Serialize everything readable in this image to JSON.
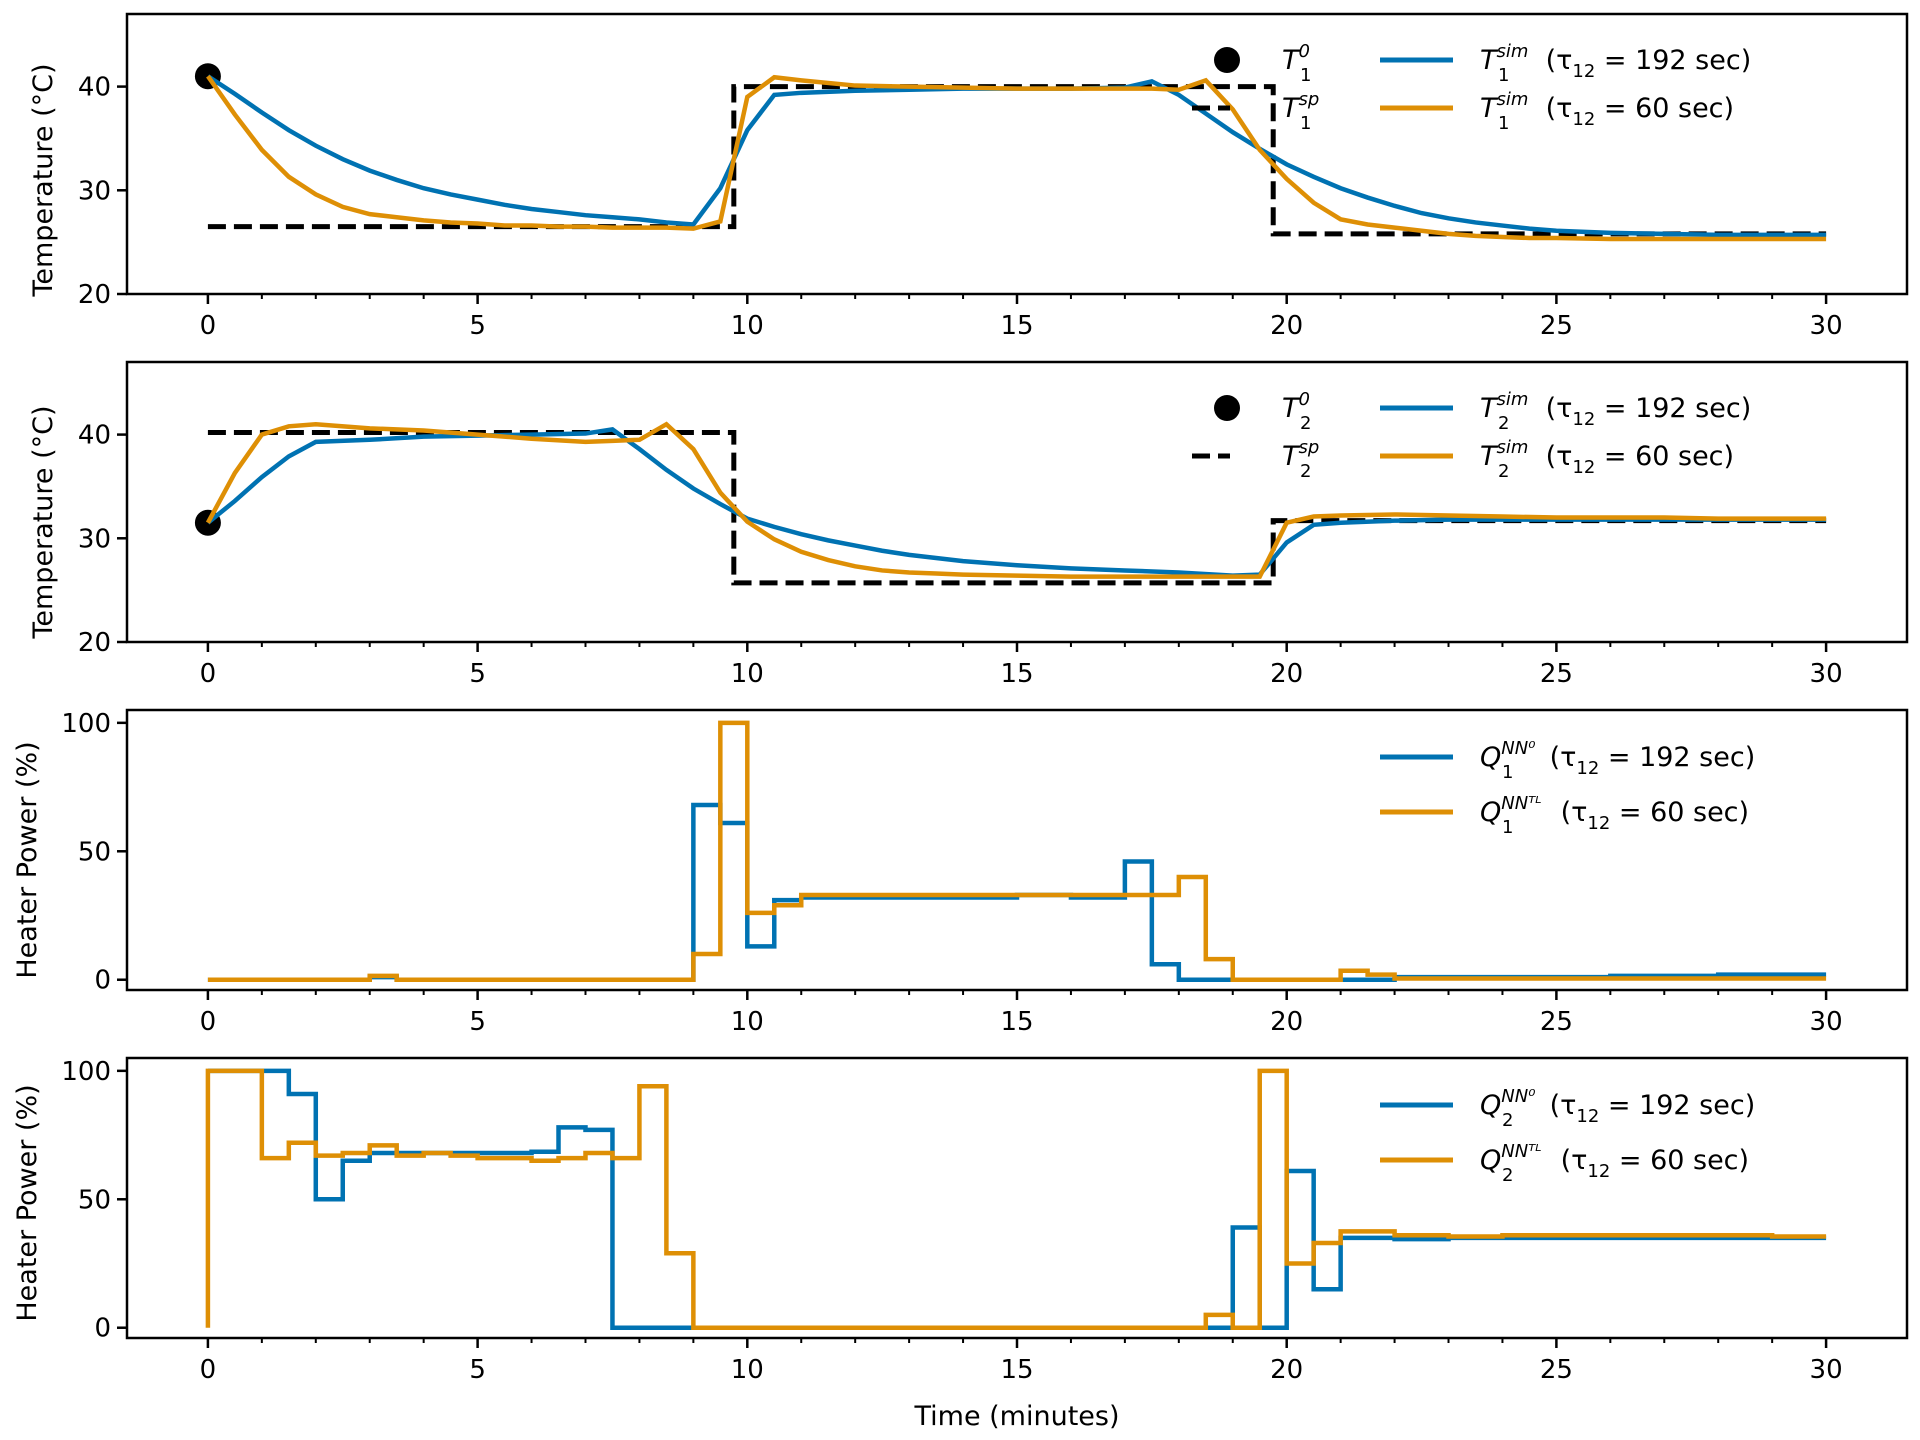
{
  "figure": {
    "xlabel": "Time (minutes)"
  },
  "chart_data": [
    {
      "type": "line",
      "ylabel": "Temperature (°C)",
      "xlim": [
        -1.5,
        31.5
      ],
      "ylim": [
        20,
        47
      ],
      "xticks": [
        0,
        5,
        10,
        15,
        20,
        25,
        30
      ],
      "yticks": [
        20,
        30,
        40
      ],
      "grid": false,
      "legend_placement": "top-right",
      "series": [
        {
          "name": "T₁⁰",
          "kind": "point",
          "color": "#000000",
          "x": [
            0
          ],
          "y": [
            41
          ]
        },
        {
          "name": "T₁ˢᵖ",
          "kind": "dashed",
          "color": "#000000",
          "x": [
            0,
            9.75,
            9.75,
            19.75,
            19.75,
            30
          ],
          "y": [
            26.5,
            26.5,
            40,
            40,
            25.8,
            25.8
          ]
        },
        {
          "name": "T₁ˢⁱᵐ (τ₁₂ = 192 sec)",
          "kind": "line",
          "color": "#0072b2",
          "x": [
            0,
            0.5,
            1,
            1.5,
            2,
            2.5,
            3,
            3.5,
            4,
            4.5,
            5,
            5.5,
            6,
            6.5,
            7,
            7.5,
            8,
            8.5,
            9,
            9.5,
            10,
            10.5,
            11,
            12,
            13,
            14,
            15,
            16,
            17,
            17.5,
            18,
            18.5,
            19,
            19.5,
            20,
            20.5,
            21,
            21.5,
            22,
            22.5,
            23,
            23.5,
            24,
            24.5,
            25,
            26,
            27,
            28,
            29,
            30
          ],
          "y": [
            41,
            39.3,
            37.5,
            35.8,
            34.3,
            33,
            31.9,
            31,
            30.2,
            29.6,
            29.1,
            28.6,
            28.2,
            27.9,
            27.6,
            27.4,
            27.2,
            26.9,
            26.7,
            30.2,
            35.8,
            39.2,
            39.4,
            39.6,
            39.7,
            39.8,
            39.8,
            39.8,
            39.9,
            40.5,
            39.2,
            37.4,
            35.6,
            34,
            32.5,
            31.3,
            30.2,
            29.3,
            28.5,
            27.8,
            27.3,
            26.9,
            26.6,
            26.3,
            26.1,
            25.9,
            25.8,
            25.7,
            25.7,
            25.7
          ]
        },
        {
          "name": "T₁ˢⁱᵐ (τ₁₂ = 60 sec)",
          "kind": "line",
          "color": "#de8f05",
          "x": [
            0,
            0.5,
            1,
            1.5,
            2,
            2.5,
            3,
            3.5,
            4,
            4.5,
            5,
            5.5,
            6,
            6.5,
            7,
            7.5,
            8,
            8.5,
            9,
            9.5,
            10,
            10.5,
            11,
            12,
            13,
            14,
            15,
            16,
            17,
            17.5,
            18,
            18.5,
            19,
            19.5,
            20,
            20.5,
            21,
            21.5,
            22,
            22.5,
            23,
            23.5,
            24,
            24.5,
            25,
            26,
            27,
            28,
            29,
            30
          ],
          "y": [
            41,
            37.3,
            33.9,
            31.3,
            29.6,
            28.4,
            27.7,
            27.4,
            27.1,
            26.9,
            26.8,
            26.6,
            26.6,
            26.5,
            26.5,
            26.4,
            26.4,
            26.4,
            26.3,
            27,
            39,
            40.9,
            40.6,
            40.1,
            40,
            39.9,
            39.8,
            39.8,
            39.8,
            39.8,
            39.7,
            40.6,
            37.8,
            33.9,
            31.1,
            28.8,
            27.2,
            26.7,
            26.4,
            26.1,
            25.8,
            25.6,
            25.5,
            25.4,
            25.4,
            25.3,
            25.3,
            25.3,
            25.3,
            25.3
          ]
        }
      ]
    },
    {
      "type": "line",
      "ylabel": "Temperature (°C)",
      "xlim": [
        -1.5,
        31.5
      ],
      "ylim": [
        20,
        47
      ],
      "xticks": [
        0,
        5,
        10,
        15,
        20,
        25,
        30
      ],
      "yticks": [
        20,
        30,
        40
      ],
      "grid": false,
      "legend_placement": "top-right",
      "series": [
        {
          "name": "T₂⁰",
          "kind": "point",
          "color": "#000000",
          "x": [
            0
          ],
          "y": [
            31.5
          ]
        },
        {
          "name": "T₂ˢᵖ",
          "kind": "dashed",
          "color": "#000000",
          "x": [
            0,
            9.75,
            9.75,
            19.75,
            19.75,
            30
          ],
          "y": [
            40.2,
            40.2,
            25.7,
            25.7,
            31.7,
            31.7
          ]
        },
        {
          "name": "T₂ˢⁱᵐ (τ₁₂ = 192 sec)",
          "kind": "line",
          "color": "#0072b2",
          "x": [
            0,
            0.5,
            1,
            1.5,
            2,
            3,
            4,
            5,
            6,
            7,
            7.5,
            8,
            8.5,
            9,
            9.5,
            10,
            10.5,
            11,
            11.5,
            12,
            12.5,
            13,
            13.5,
            14,
            15,
            16,
            17,
            18,
            19,
            19.5,
            20,
            20.5,
            21,
            22,
            23,
            24,
            25,
            26,
            27,
            28,
            29,
            30
          ],
          "y": [
            31.5,
            33.6,
            35.9,
            37.9,
            39.3,
            39.5,
            39.8,
            39.9,
            40,
            40.1,
            40.5,
            38.6,
            36.6,
            34.8,
            33.3,
            31.9,
            31.1,
            30.4,
            29.8,
            29.3,
            28.8,
            28.4,
            28.1,
            27.8,
            27.4,
            27.1,
            26.9,
            26.7,
            26.4,
            26.5,
            29.6,
            31.3,
            31.5,
            31.7,
            31.8,
            31.8,
            31.8,
            31.8,
            31.8,
            31.8,
            31.8,
            31.8
          ]
        },
        {
          "name": "T₂ˢⁱᵐ (τ₁₂ = 60 sec)",
          "kind": "line",
          "color": "#de8f05",
          "x": [
            0,
            0.5,
            1,
            1.5,
            2,
            3,
            4,
            5,
            6,
            7,
            7.5,
            8,
            8.5,
            9,
            9.5,
            10,
            10.5,
            11,
            11.5,
            12,
            12.5,
            13,
            13.5,
            14,
            15,
            16,
            17,
            18,
            19,
            19.5,
            20,
            20.5,
            21,
            22,
            23,
            24,
            25,
            26,
            27,
            28,
            29,
            30
          ],
          "y": [
            31.5,
            36.3,
            40,
            40.8,
            41,
            40.6,
            40.4,
            40,
            39.6,
            39.3,
            39.4,
            39.5,
            41,
            38.6,
            34.4,
            31.6,
            29.9,
            28.7,
            27.9,
            27.3,
            26.9,
            26.7,
            26.6,
            26.5,
            26.4,
            26.3,
            26.3,
            26.3,
            26.3,
            26.3,
            31.5,
            32.1,
            32.2,
            32.3,
            32.2,
            32.1,
            32,
            32,
            32,
            31.9,
            31.9,
            31.9
          ]
        }
      ]
    },
    {
      "type": "line",
      "ylabel": "Heater Power (%)",
      "xlim": [
        -1.5,
        31.5
      ],
      "ylim": [
        -4,
        105
      ],
      "xticks": [
        0,
        5,
        10,
        15,
        20,
        25,
        30
      ],
      "yticks": [
        0,
        50,
        100
      ],
      "grid": false,
      "legend_placement": "top-right",
      "series": [
        {
          "name": "Q₁ᴺᴺ⁰ (τ₁₂ = 192 sec)",
          "kind": "step",
          "color": "#0072b2",
          "x": [
            0,
            3,
            3.5,
            9,
            9.5,
            10,
            10.5,
            11,
            12,
            13,
            15,
            16,
            17,
            17.5,
            18,
            19,
            20,
            21,
            22,
            23,
            24,
            25,
            26,
            27,
            28,
            29,
            30
          ],
          "y": [
            0,
            1,
            0,
            68,
            61,
            13,
            31,
            32,
            32,
            32,
            33,
            32,
            46,
            6,
            0,
            0,
            0,
            0,
            1,
            1,
            1,
            1,
            1.5,
            1.5,
            2,
            2,
            2
          ]
        },
        {
          "name": "Q₁ᴺᴺᵀᴸ (τ₁₂ = 60 sec)",
          "kind": "step",
          "color": "#de8f05",
          "x": [
            0,
            3,
            3.5,
            9,
            9.5,
            10,
            10.5,
            11,
            12,
            13,
            15.5,
            16,
            17,
            18,
            18.5,
            19,
            21,
            21.5,
            22,
            23,
            24,
            25,
            26,
            27,
            28,
            29,
            30
          ],
          "y": [
            0,
            1.5,
            0,
            10,
            100,
            26,
            29,
            33,
            33,
            33,
            33,
            33,
            33,
            40,
            8,
            0,
            3.5,
            2,
            0.5,
            0.5,
            0.5,
            0.5,
            0.5,
            0.5,
            0.5,
            0.5,
            0.5
          ]
        }
      ]
    },
    {
      "type": "line",
      "ylabel": "Heater Power (%)",
      "xlim": [
        -1.5,
        31.5
      ],
      "ylim": [
        -4,
        105
      ],
      "xticks": [
        0,
        5,
        10,
        15,
        20,
        25,
        30
      ],
      "yticks": [
        0,
        50,
        100
      ],
      "grid": false,
      "legend_placement": "right",
      "series": [
        {
          "name": "Q₂ᴺᴺ⁰ (τ₁₂ = 192 sec)",
          "kind": "step",
          "color": "#0072b2",
          "x": [
            0,
            1.5,
            2,
            2.5,
            3,
            3.5,
            4,
            4.5,
            5,
            5.5,
            6,
            6.5,
            7,
            7.5,
            19,
            19.5,
            20,
            20.5,
            21,
            21.5,
            22,
            23,
            24,
            25,
            26,
            27,
            28,
            29,
            30
          ],
          "y": [
            100,
            91,
            50,
            65,
            68,
            68,
            68,
            68,
            68,
            68,
            68.5,
            78,
            77,
            0,
            39,
            0,
            61,
            15,
            35,
            35,
            34.5,
            35,
            35,
            35,
            35,
            35,
            35,
            35,
            35
          ]
        },
        {
          "name": "Q₂ᴺᴺᵀᴸ (τ₁₂ = 60 sec)",
          "kind": "step",
          "color": "#de8f05",
          "x": [
            0,
            1,
            1.5,
            2,
            2.5,
            3,
            3.5,
            4,
            4.5,
            5,
            6,
            6.5,
            7,
            7.5,
            8,
            8.5,
            9,
            18.5,
            19,
            19.5,
            20,
            20.5,
            21,
            22,
            23,
            24,
            25,
            26,
            27,
            28,
            29,
            30
          ],
          "y": [
            100,
            66,
            72,
            67,
            68,
            71,
            67,
            68,
            67,
            66,
            65,
            66,
            68,
            66,
            94,
            29,
            0,
            5,
            0,
            100,
            25,
            33,
            37.5,
            36,
            35.5,
            36,
            36,
            36,
            36,
            36,
            35.5,
            35.5
          ]
        }
      ]
    }
  ]
}
